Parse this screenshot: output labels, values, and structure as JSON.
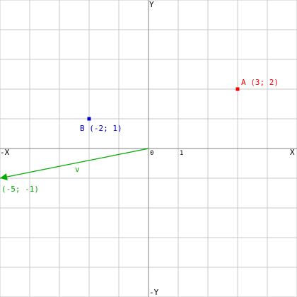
{
  "chart_data": {
    "type": "scatter",
    "xlim": [
      -5,
      5
    ],
    "ylim": [
      -5,
      5
    ],
    "grid": true,
    "axes": {
      "x_positive_label": "X",
      "x_negative_label": "-X",
      "y_positive_label": "Y",
      "y_negative_label": "-Y",
      "origin_label": "0",
      "unit_label": "1"
    },
    "points": [
      {
        "name": "A",
        "x": 3,
        "y": 2,
        "label": "A (3; 2)",
        "color": "#ff0000"
      },
      {
        "name": "B",
        "x": -2,
        "y": 1,
        "label": "B (-2; 1)",
        "color": "#0000cc"
      }
    ],
    "vectors": [
      {
        "name": "v",
        "from": [
          0,
          0
        ],
        "to": [
          -5,
          -1
        ],
        "label": "v",
        "end_label": "(-5; -1)",
        "color": "#00aa00"
      }
    ],
    "colors": {
      "grid": "#c8c8c8",
      "axis": "#808080",
      "text": "#000000"
    }
  }
}
